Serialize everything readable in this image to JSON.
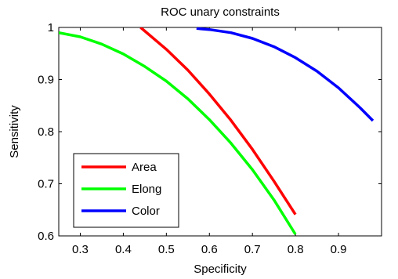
{
  "chart_data": {
    "type": "line",
    "title": "ROC unary constraints",
    "xlabel": "Specificity",
    "ylabel": "Sensitivity",
    "xlim": [
      0.25,
      1.0
    ],
    "ylim": [
      0.6,
      1.0
    ],
    "xticks": [
      0.3,
      0.4,
      0.5,
      0.6,
      0.7,
      0.8,
      0.9
    ],
    "yticks": [
      0.6,
      0.7,
      0.8,
      0.9,
      1
    ],
    "grid": false,
    "legend_position": "bottom-left",
    "series": [
      {
        "name": "Area",
        "color": "#ff0000",
        "x": [
          0.44,
          0.5,
          0.55,
          0.6,
          0.65,
          0.7,
          0.75,
          0.8
        ],
        "y": [
          1.0,
          0.958,
          0.918,
          0.872,
          0.822,
          0.766,
          0.705,
          0.641
        ]
      },
      {
        "name": "Elong",
        "color": "#00ff00",
        "x": [
          0.25,
          0.3,
          0.35,
          0.4,
          0.45,
          0.5,
          0.55,
          0.6,
          0.65,
          0.7,
          0.75,
          0.8
        ],
        "y": [
          0.99,
          0.982,
          0.968,
          0.949,
          0.925,
          0.897,
          0.863,
          0.823,
          0.778,
          0.727,
          0.669,
          0.603
        ]
      },
      {
        "name": "Color",
        "color": "#0000ff",
        "x": [
          0.57,
          0.6,
          0.65,
          0.7,
          0.75,
          0.8,
          0.85,
          0.9,
          0.95,
          0.98
        ],
        "y": [
          0.998,
          0.996,
          0.99,
          0.979,
          0.963,
          0.942,
          0.916,
          0.884,
          0.846,
          0.821
        ]
      }
    ]
  }
}
